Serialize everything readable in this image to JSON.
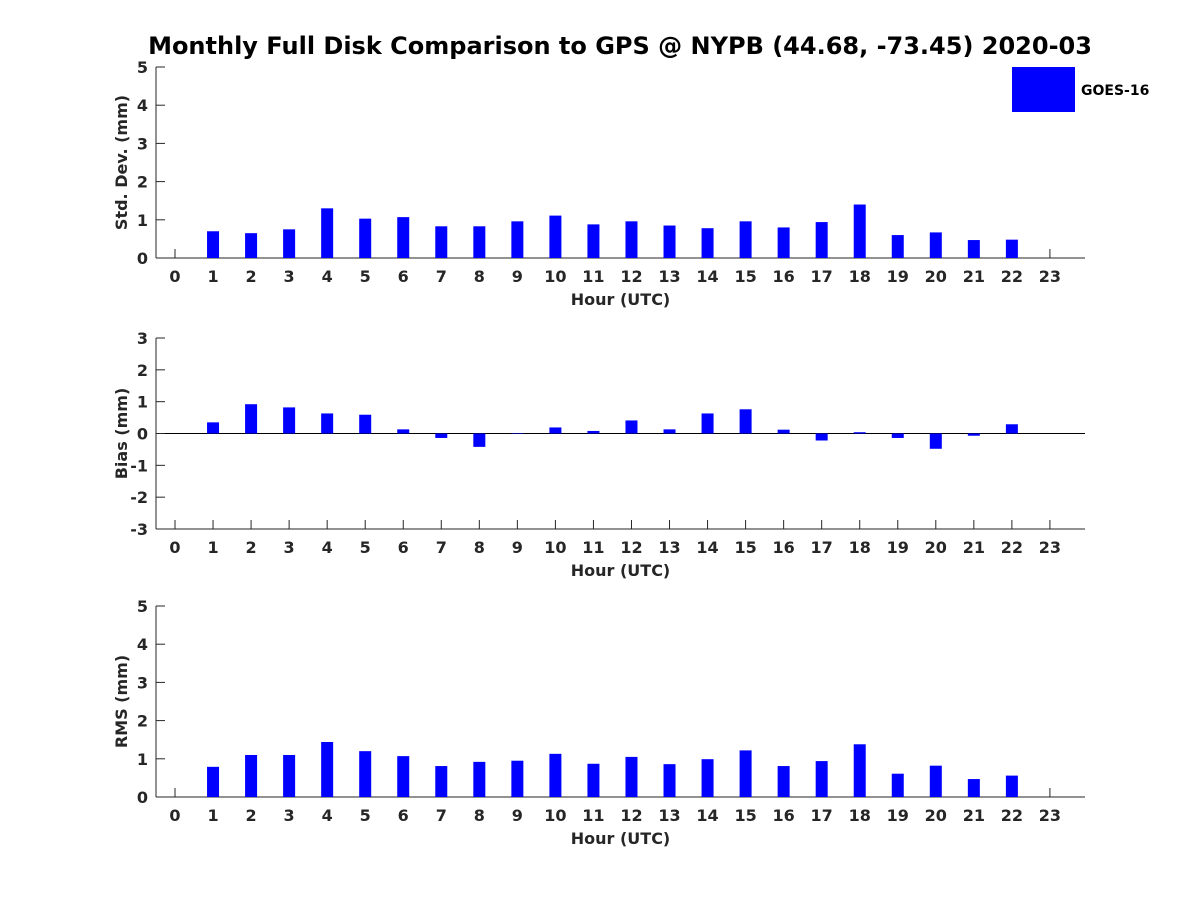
{
  "title": "Monthly Full Disk Comparison to GPS @ NYPB (44.68, -73.45) 2020-03",
  "legend": {
    "label": "GOES-16",
    "color": "#0000ff"
  },
  "chart_data": [
    {
      "type": "bar",
      "xlabel": "Hour (UTC)",
      "ylabel": "Std. Dev. (mm)",
      "ylim": [
        0,
        5
      ],
      "yticks": [
        0,
        1,
        2,
        3,
        4,
        5
      ],
      "categories": [
        "0",
        "1",
        "2",
        "3",
        "4",
        "5",
        "6",
        "7",
        "8",
        "9",
        "10",
        "11",
        "12",
        "13",
        "14",
        "15",
        "16",
        "17",
        "18",
        "19",
        "20",
        "21",
        "22",
        "23"
      ],
      "series": [
        {
          "name": "GOES-16",
          "color": "#0000ff",
          "values": [
            null,
            0.7,
            0.65,
            0.75,
            1.3,
            1.03,
            1.07,
            0.83,
            0.83,
            0.96,
            1.11,
            0.88,
            0.96,
            0.85,
            0.78,
            0.96,
            0.8,
            0.94,
            1.4,
            0.6,
            0.67,
            0.47,
            0.48,
            null
          ]
        }
      ]
    },
    {
      "type": "bar",
      "xlabel": "Hour (UTC)",
      "ylabel": "Bias (mm)",
      "ylim": [
        -3,
        3
      ],
      "yticks": [
        -3,
        -2,
        -1,
        0,
        1,
        2,
        3
      ],
      "zero_line": true,
      "categories": [
        "0",
        "1",
        "2",
        "3",
        "4",
        "5",
        "6",
        "7",
        "8",
        "9",
        "10",
        "11",
        "12",
        "13",
        "14",
        "15",
        "16",
        "17",
        "18",
        "19",
        "20",
        "21",
        "22",
        "23"
      ],
      "series": [
        {
          "name": "GOES-16",
          "color": "#0000ff",
          "values": [
            null,
            0.35,
            0.92,
            0.82,
            0.63,
            0.59,
            0.13,
            -0.14,
            -0.42,
            0.0,
            0.19,
            0.08,
            0.41,
            0.13,
            0.63,
            0.76,
            0.12,
            -0.22,
            0.04,
            -0.14,
            -0.48,
            -0.07,
            0.29,
            null
          ]
        }
      ]
    },
    {
      "type": "bar",
      "xlabel": "Hour (UTC)",
      "ylabel": "RMS (mm)",
      "ylim": [
        0,
        5
      ],
      "yticks": [
        0,
        1,
        2,
        3,
        4,
        5
      ],
      "categories": [
        "0",
        "1",
        "2",
        "3",
        "4",
        "5",
        "6",
        "7",
        "8",
        "9",
        "10",
        "11",
        "12",
        "13",
        "14",
        "15",
        "16",
        "17",
        "18",
        "19",
        "20",
        "21",
        "22",
        "23"
      ],
      "series": [
        {
          "name": "GOES-16",
          "color": "#0000ff",
          "values": [
            null,
            0.79,
            1.1,
            1.1,
            1.44,
            1.2,
            1.07,
            0.81,
            0.92,
            0.95,
            1.13,
            0.87,
            1.05,
            0.86,
            0.99,
            1.22,
            0.81,
            0.94,
            1.38,
            0.61,
            0.82,
            0.47,
            0.56,
            null
          ]
        }
      ]
    }
  ]
}
